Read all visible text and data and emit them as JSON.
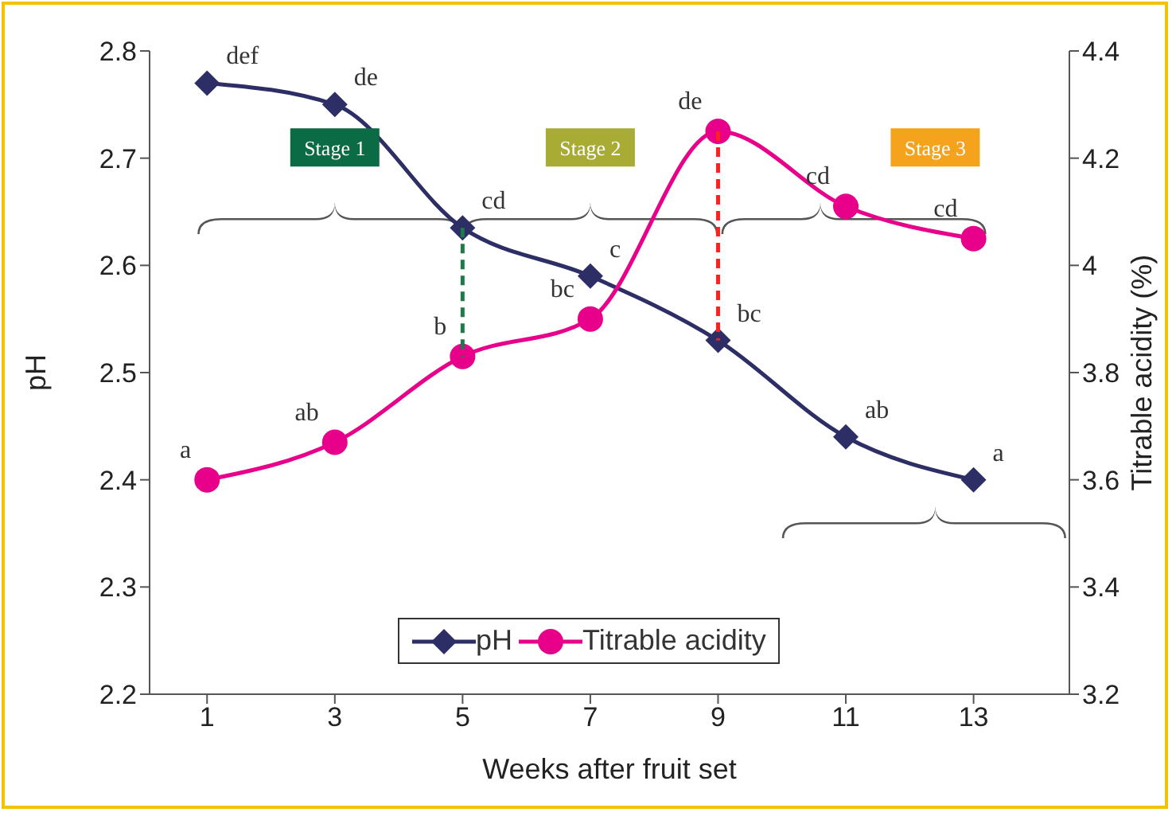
{
  "chart_data": {
    "type": "line",
    "xlabel": "Weeks after fruit set",
    "ylabel": "pH",
    "y2label": "Titrable acidity (%)",
    "x": [
      1,
      3,
      5,
      7,
      9,
      11,
      13
    ],
    "xlim": [
      0.1,
      14.5
    ],
    "xticks": [
      1,
      3,
      5,
      7,
      9,
      11,
      13
    ],
    "ylim": [
      2.2,
      2.8
    ],
    "yticks": [
      2.2,
      2.3,
      2.4,
      2.5,
      2.6,
      2.7,
      2.8
    ],
    "y2lim": [
      3.2,
      4.4
    ],
    "y2ticks": [
      3.2,
      3.4,
      3.6,
      3.8,
      4,
      4.2,
      4.4
    ],
    "series": [
      {
        "name": "pH",
        "color": "#2e2e66",
        "marker": "diamond",
        "values": [
          2.77,
          2.75,
          2.635,
          2.59,
          2.53,
          2.44,
          2.4
        ],
        "value_labels": [
          "def",
          "de",
          "cd",
          "c",
          "bc",
          "ab",
          "a"
        ]
      },
      {
        "name": "Titrable acidity",
        "color": "#e8008a",
        "marker": "circle",
        "axis": "y2",
        "values": [
          3.6,
          3.67,
          3.83,
          3.9,
          4.25,
          4.11,
          4.05
        ],
        "value_labels": [
          "a",
          "ab",
          "b",
          "bc",
          "de",
          "cd",
          "cd"
        ]
      }
    ],
    "annotations": [
      "Stage 1",
      "Stage 2",
      "Stage 3"
    ],
    "ref_lines": [
      {
        "axis": "x",
        "value": 5,
        "color": "#1e7a4a",
        "line_style": "dashed"
      },
      {
        "axis": "x",
        "value": 9,
        "color": "#ff2020",
        "line_style": "dashed"
      }
    ],
    "grid": false,
    "legend": "bottom"
  }
}
